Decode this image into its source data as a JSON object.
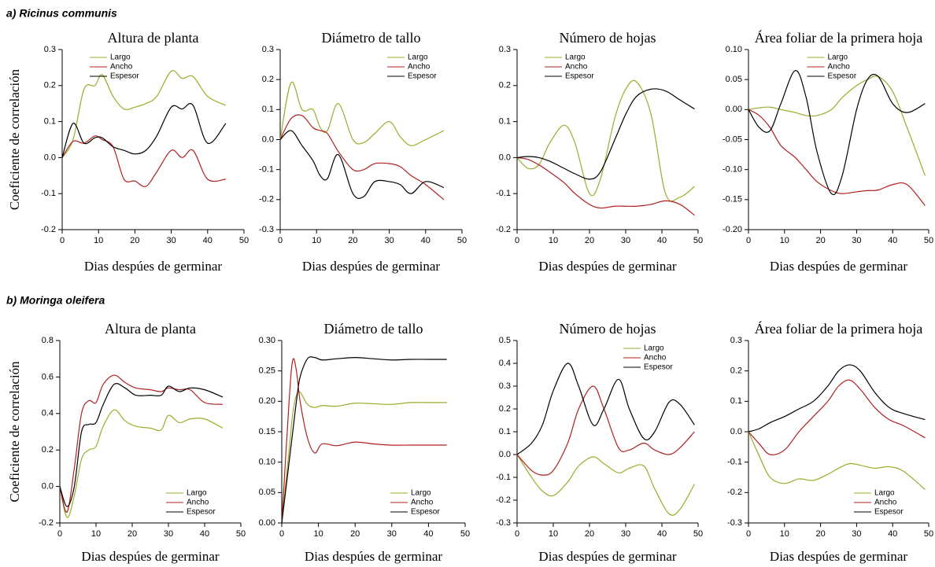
{
  "chart_data": [
    {
      "type": "line",
      "group_title": "a) Ricinus communis",
      "title": "Altura de planta",
      "x_label": "Dias despúes de germinar",
      "y_label": "Coeficiente de correlación",
      "legend": "upper left",
      "xlim": [
        0,
        50
      ],
      "xticks": [
        0,
        10,
        20,
        30,
        40,
        50
      ],
      "ylim": [
        -0.2,
        0.3
      ],
      "yticks": [
        -0.2,
        -0.1,
        {
          "value": 0,
          "label": "0.0"
        },
        0.1,
        0.2,
        0.3
      ],
      "x": [
        0,
        3,
        6,
        9,
        11,
        14,
        17,
        20,
        23,
        26,
        30,
        33,
        36,
        40,
        45
      ],
      "series": [
        {
          "name": "Largo",
          "color": "#9aad2a",
          "values": [
            0,
            0.05,
            0.19,
            0.2,
            0.23,
            0.17,
            0.135,
            0.14,
            0.15,
            0.17,
            0.24,
            0.22,
            0.225,
            0.17,
            0.145
          ]
        },
        {
          "name": "Ancho",
          "color": "#b02020",
          "values": [
            0,
            0.045,
            0.04,
            0.06,
            0.05,
            0.03,
            -0.06,
            -0.065,
            -0.08,
            -0.04,
            0.02,
            0.0,
            0.02,
            -0.06,
            -0.06
          ]
        },
        {
          "name": "Espesor",
          "color": "#000000",
          "values": [
            0,
            0.095,
            0.04,
            0.055,
            0.055,
            0.03,
            0.02,
            0.01,
            0.02,
            0.06,
            0.14,
            0.135,
            0.145,
            0.04,
            0.095
          ]
        }
      ]
    },
    {
      "type": "line",
      "title": "Diámetro de tallo",
      "x_label": "Dias despúes de germinar",
      "legend": "upper right",
      "xlim": [
        0,
        50
      ],
      "xticks": [
        0,
        10,
        20,
        30,
        40,
        50
      ],
      "ylim": [
        -0.3,
        0.3
      ],
      "yticks": [
        -0.3,
        -0.2,
        -0.1,
        {
          "value": 0,
          "label": "0.0"
        },
        0.1,
        0.2,
        0.3
      ],
      "x": [
        0,
        3,
        6,
        9,
        11,
        13,
        16,
        20,
        23,
        26,
        30,
        33,
        36,
        40,
        45
      ],
      "series": [
        {
          "name": "Largo",
          "color": "#9aad2a",
          "values": [
            0,
            0.19,
            0.1,
            0.1,
            0.04,
            0.03,
            0.12,
            0.0,
            -0.01,
            0.02,
            0.06,
            0.01,
            -0.02,
            0.0,
            0.03
          ]
        },
        {
          "name": "Ancho",
          "color": "#b02020",
          "values": [
            0,
            0.07,
            0.08,
            0.04,
            0.03,
            0.02,
            -0.04,
            -0.1,
            -0.1,
            -0.08,
            -0.08,
            -0.09,
            -0.12,
            -0.15,
            -0.2
          ]
        },
        {
          "name": "Espesor",
          "color": "#000000",
          "values": [
            0,
            0.03,
            -0.02,
            -0.07,
            -0.12,
            -0.13,
            -0.05,
            -0.18,
            -0.19,
            -0.14,
            -0.14,
            -0.15,
            -0.18,
            -0.14,
            -0.16
          ]
        }
      ]
    },
    {
      "type": "line",
      "title": "Número de hojas",
      "x_label": "Dias despúes de germinar",
      "legend": "upper left",
      "xlim": [
        0,
        50
      ],
      "xticks": [
        0,
        10,
        20,
        30,
        40,
        50
      ],
      "ylim": [
        -0.2,
        0.3
      ],
      "yticks": [
        -0.2,
        -0.1,
        {
          "value": 0,
          "label": "0.0"
        },
        0.1,
        0.2,
        0.3
      ],
      "x": [
        0,
        3,
        6,
        9,
        13,
        16,
        20,
        23,
        27,
        30,
        33,
        37,
        41,
        45,
        49
      ],
      "series": [
        {
          "name": "Largo",
          "color": "#9aad2a",
          "values": [
            0,
            -0.03,
            -0.02,
            0.04,
            0.09,
            0.04,
            -0.1,
            -0.06,
            0.11,
            0.19,
            0.21,
            0.12,
            -0.1,
            -0.11,
            -0.08
          ]
        },
        {
          "name": "Ancho",
          "color": "#b02020",
          "values": [
            0,
            -0.005,
            -0.02,
            -0.04,
            -0.07,
            -0.1,
            -0.13,
            -0.14,
            -0.135,
            -0.135,
            -0.135,
            -0.13,
            -0.12,
            -0.13,
            -0.16
          ]
        },
        {
          "name": "Espesor",
          "color": "#000000",
          "values": [
            0,
            0.003,
            0,
            -0.01,
            -0.03,
            -0.045,
            -0.06,
            -0.04,
            0.05,
            0.12,
            0.17,
            0.19,
            0.185,
            0.16,
            0.135
          ]
        }
      ]
    },
    {
      "type": "line",
      "title": "Área foliar de la primera hoja",
      "x_label": "Dias despúes de germinar",
      "legend": "upper center",
      "xlim": [
        0,
        50
      ],
      "xticks": [
        0,
        10,
        20,
        30,
        40,
        50
      ],
      "ylim": [
        -0.2,
        0.1
      ],
      "yticks": [
        {
          "value": -0.2,
          "label": "-0.20"
        },
        -0.15,
        {
          "value": -0.1,
          "label": "-0.10"
        },
        -0.05,
        {
          "value": 0,
          "label": "0.00"
        },
        0.05,
        {
          "value": 0.1,
          "label": "0.10"
        }
      ],
      "x": [
        0,
        3,
        6,
        9,
        13,
        16,
        19,
        23,
        26,
        30,
        33,
        36,
        40,
        44,
        49
      ],
      "series": [
        {
          "name": "Largo",
          "color": "#9aad2a",
          "values": [
            0,
            0.003,
            0.004,
            0.0,
            -0.005,
            -0.01,
            -0.01,
            0.0,
            0.02,
            0.04,
            0.05,
            0.055,
            0.03,
            -0.03,
            -0.11
          ]
        },
        {
          "name": "Ancho",
          "color": "#b02020",
          "values": [
            0,
            -0.01,
            -0.03,
            -0.06,
            -0.08,
            -0.1,
            -0.12,
            -0.135,
            -0.14,
            -0.137,
            -0.135,
            -0.134,
            -0.125,
            -0.125,
            -0.16
          ]
        },
        {
          "name": "Espesor",
          "color": "#000000",
          "values": [
            0,
            -0.03,
            -0.035,
            0.01,
            0.065,
            0.02,
            -0.07,
            -0.14,
            -0.11,
            0.0,
            0.05,
            0.055,
            0.01,
            -0.005,
            0.01
          ]
        }
      ]
    },
    {
      "type": "line",
      "group_title": "b) Moringa oleifera",
      "title": "Altura de planta",
      "x_label": "Dias despúes de germinar",
      "y_label": "Coeficiente de correlación",
      "legend": "lower right",
      "xlim": [
        0,
        50
      ],
      "xticks": [
        0,
        10,
        20,
        30,
        40,
        50
      ],
      "ylim": [
        -0.2,
        0.8
      ],
      "yticks": [
        -0.2,
        {
          "value": 0,
          "label": "0.0"
        },
        0.2,
        0.4,
        0.6,
        0.8
      ],
      "x": [
        0,
        2,
        4,
        6,
        8,
        10,
        12,
        15,
        18,
        21,
        25,
        28,
        30,
        33,
        36,
        40,
        45
      ],
      "series": [
        {
          "name": "Largo",
          "color": "#9aad2a",
          "values": [
            0,
            -0.17,
            -0.05,
            0.15,
            0.2,
            0.22,
            0.33,
            0.42,
            0.36,
            0.33,
            0.32,
            0.31,
            0.39,
            0.35,
            0.37,
            0.37,
            0.32
          ]
        },
        {
          "name": "Ancho",
          "color": "#b02020",
          "values": [
            0,
            -0.14,
            0.1,
            0.4,
            0.47,
            0.46,
            0.56,
            0.61,
            0.57,
            0.54,
            0.53,
            0.52,
            0.54,
            0.53,
            0.53,
            0.46,
            0.45
          ]
        },
        {
          "name": "Espesor",
          "color": "#000000",
          "values": [
            0,
            -0.11,
            0.0,
            0.3,
            0.34,
            0.35,
            0.45,
            0.56,
            0.54,
            0.5,
            0.5,
            0.5,
            0.55,
            0.52,
            0.54,
            0.53,
            0.49
          ]
        }
      ]
    },
    {
      "type": "line",
      "title": "Diámetro de tallo",
      "x_label": "Dias despúes de germinar",
      "legend": "lower right",
      "xlim": [
        0,
        50
      ],
      "xticks": [
        0,
        10,
        20,
        30,
        40,
        50
      ],
      "ylim": [
        0,
        0.3
      ],
      "yticks": [
        {
          "value": 0,
          "label": "0.00"
        },
        0.05,
        {
          "value": 0.1,
          "label": "0.10"
        },
        0.15,
        {
          "value": 0.2,
          "label": "0.20"
        },
        0.25,
        {
          "value": 0.3,
          "label": "0.30"
        }
      ],
      "x": [
        0,
        2,
        3,
        4,
        5,
        7,
        9,
        11,
        15,
        20,
        25,
        30,
        35,
        40,
        45
      ],
      "series": [
        {
          "name": "Largo",
          "color": "#9aad2a",
          "values": [
            0,
            0.12,
            0.18,
            0.21,
            0.215,
            0.195,
            0.19,
            0.193,
            0.192,
            0.197,
            0.196,
            0.195,
            0.198,
            0.198,
            0.198
          ]
        },
        {
          "name": "Ancho",
          "color": "#b02020",
          "values": [
            0,
            0.2,
            0.268,
            0.25,
            0.2,
            0.14,
            0.115,
            0.13,
            0.127,
            0.133,
            0.13,
            0.128,
            0.128,
            0.128,
            0.128
          ]
        },
        {
          "name": "Espesor",
          "color": "#000000",
          "values": [
            0,
            0.1,
            0.15,
            0.2,
            0.24,
            0.27,
            0.272,
            0.268,
            0.27,
            0.272,
            0.27,
            0.268,
            0.269,
            0.269,
            0.269
          ]
        }
      ]
    },
    {
      "type": "line",
      "title": "Número de hojas",
      "x_label": "Dias despúes de germinar",
      "legend": "upper right",
      "xlim": [
        0,
        50
      ],
      "xticks": [
        0,
        10,
        20,
        30,
        40,
        50
      ],
      "ylim": [
        -0.3,
        0.5
      ],
      "yticks": [
        -0.3,
        -0.2,
        -0.1,
        {
          "value": 0,
          "label": "0.0"
        },
        0.1,
        0.2,
        0.3,
        0.4,
        0.5
      ],
      "x": [
        0,
        4,
        7,
        10,
        14,
        17,
        21,
        24,
        28,
        31,
        35,
        38,
        42,
        45,
        49
      ],
      "series": [
        {
          "name": "Largo",
          "color": "#9aad2a",
          "values": [
            0,
            -0.1,
            -0.16,
            -0.18,
            -0.12,
            -0.05,
            -0.01,
            -0.04,
            -0.08,
            -0.06,
            -0.05,
            -0.15,
            -0.26,
            -0.24,
            -0.13
          ]
        },
        {
          "name": "Ancho",
          "color": "#b02020",
          "values": [
            0,
            -0.07,
            -0.09,
            -0.07,
            0.05,
            0.2,
            0.3,
            0.2,
            0.03,
            0.02,
            0.05,
            0.02,
            0.0,
            0.03,
            0.1
          ]
        },
        {
          "name": "Espesor",
          "color": "#000000",
          "values": [
            0,
            0.05,
            0.13,
            0.28,
            0.4,
            0.3,
            0.13,
            0.2,
            0.33,
            0.2,
            0.07,
            0.1,
            0.23,
            0.22,
            0.13
          ]
        }
      ]
    },
    {
      "type": "line",
      "title": "Área foliar de la primera hoja",
      "x_label": "Dias despúes de germinar",
      "legend": "lower right",
      "xlim": [
        0,
        50
      ],
      "xticks": [
        0,
        10,
        20,
        30,
        40,
        50
      ],
      "ylim": [
        -0.3,
        0.3
      ],
      "yticks": [
        -0.3,
        -0.2,
        -0.1,
        {
          "value": 0,
          "label": "0.0"
        },
        0.1,
        0.2,
        0.3
      ],
      "x": [
        0,
        3,
        6,
        10,
        14,
        18,
        22,
        25,
        28,
        31,
        35,
        39,
        43,
        49
      ],
      "series": [
        {
          "name": "Largo",
          "color": "#9aad2a",
          "values": [
            0,
            -0.08,
            -0.15,
            -0.17,
            -0.155,
            -0.16,
            -0.14,
            -0.12,
            -0.105,
            -0.11,
            -0.12,
            -0.115,
            -0.13,
            -0.19
          ]
        },
        {
          "name": "Ancho",
          "color": "#b02020",
          "values": [
            0,
            -0.04,
            -0.075,
            -0.06,
            0.0,
            0.05,
            0.1,
            0.15,
            0.17,
            0.14,
            0.08,
            0.04,
            0.02,
            -0.02
          ]
        },
        {
          "name": "Espesor",
          "color": "#000000",
          "values": [
            0,
            0.01,
            0.03,
            0.05,
            0.075,
            0.1,
            0.15,
            0.2,
            0.22,
            0.2,
            0.13,
            0.08,
            0.06,
            0.04
          ]
        }
      ]
    }
  ]
}
